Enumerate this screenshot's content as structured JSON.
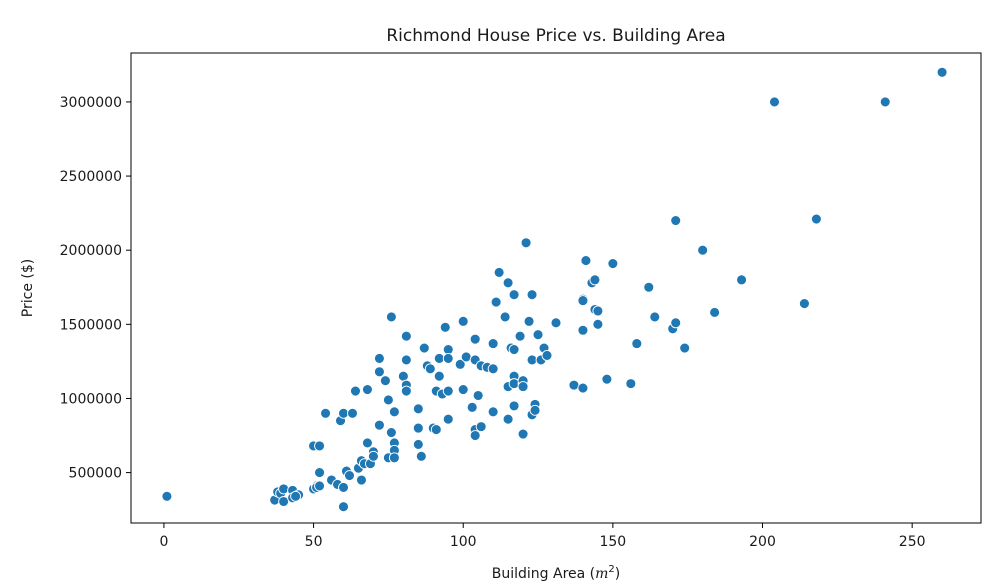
{
  "chart_data": {
    "type": "scatter",
    "title": "Richmond House Price vs. Building Area",
    "xlabel": "Building Area (",
    "xlabel_unit_base": "m",
    "xlabel_unit_exp": "2",
    "xlabel_close": ")",
    "ylabel": "Price ($)",
    "xlim": [
      -11,
      273
    ],
    "ylim": [
      160000,
      3330000
    ],
    "xticks": [
      0,
      50,
      100,
      150,
      200,
      250
    ],
    "yticks": [
      500000,
      1000000,
      1500000,
      2000000,
      2500000,
      3000000
    ],
    "grid": false,
    "marker_color": "#1f77b4",
    "series": [
      {
        "points": [
          [
            1,
            340000
          ],
          [
            37,
            315000
          ],
          [
            38,
            370000
          ],
          [
            39,
            360000
          ],
          [
            40,
            390000
          ],
          [
            40,
            305000
          ],
          [
            43,
            380000
          ],
          [
            43,
            330000
          ],
          [
            45,
            350000
          ],
          [
            44,
            340000
          ],
          [
            50,
            680000
          ],
          [
            50,
            390000
          ],
          [
            51,
            410000
          ],
          [
            51,
            400000
          ],
          [
            52,
            500000
          ],
          [
            52,
            680000
          ],
          [
            52,
            410000
          ],
          [
            54,
            900000
          ],
          [
            56,
            450000
          ],
          [
            58,
            420000
          ],
          [
            59,
            850000
          ],
          [
            60,
            900000
          ],
          [
            60,
            270000
          ],
          [
            60,
            400000
          ],
          [
            61,
            510000
          ],
          [
            62,
            480000
          ],
          [
            63,
            900000
          ],
          [
            64,
            1050000
          ],
          [
            65,
            530000
          ],
          [
            66,
            580000
          ],
          [
            66,
            450000
          ],
          [
            67,
            560000
          ],
          [
            68,
            1060000
          ],
          [
            68,
            700000
          ],
          [
            69,
            560000
          ],
          [
            70,
            640000
          ],
          [
            70,
            610000
          ],
          [
            72,
            1270000
          ],
          [
            72,
            1180000
          ],
          [
            72,
            820000
          ],
          [
            74,
            1120000
          ],
          [
            75,
            600000
          ],
          [
            75,
            990000
          ],
          [
            76,
            1550000
          ],
          [
            76,
            770000
          ],
          [
            77,
            700000
          ],
          [
            77,
            650000
          ],
          [
            77,
            910000
          ],
          [
            77,
            600000
          ],
          [
            80,
            1150000
          ],
          [
            81,
            1420000
          ],
          [
            81,
            1260000
          ],
          [
            81,
            1090000
          ],
          [
            81,
            1050000
          ],
          [
            85,
            930000
          ],
          [
            85,
            800000
          ],
          [
            85,
            690000
          ],
          [
            86,
            610000
          ],
          [
            87,
            1340000
          ],
          [
            88,
            1220000
          ],
          [
            89,
            1200000
          ],
          [
            90,
            800000
          ],
          [
            91,
            1050000
          ],
          [
            91,
            790000
          ],
          [
            92,
            1270000
          ],
          [
            92,
            1150000
          ],
          [
            93,
            1030000
          ],
          [
            94,
            1480000
          ],
          [
            95,
            1330000
          ],
          [
            95,
            1270000
          ],
          [
            95,
            1050000
          ],
          [
            95,
            860000
          ],
          [
            99,
            1230000
          ],
          [
            100,
            1520000
          ],
          [
            100,
            1060000
          ],
          [
            101,
            1280000
          ],
          [
            103,
            940000
          ],
          [
            104,
            1400000
          ],
          [
            104,
            1260000
          ],
          [
            104,
            790000
          ],
          [
            104,
            750000
          ],
          [
            105,
            1020000
          ],
          [
            106,
            1220000
          ],
          [
            106,
            810000
          ],
          [
            108,
            1210000
          ],
          [
            110,
            1370000
          ],
          [
            110,
            1200000
          ],
          [
            110,
            910000
          ],
          [
            111,
            1650000
          ],
          [
            112,
            1850000
          ],
          [
            114,
            1550000
          ],
          [
            115,
            1780000
          ],
          [
            115,
            1080000
          ],
          [
            115,
            860000
          ],
          [
            116,
            1340000
          ],
          [
            117,
            1700000
          ],
          [
            117,
            1330000
          ],
          [
            117,
            1150000
          ],
          [
            117,
            1100000
          ],
          [
            117,
            950000
          ],
          [
            119,
            1420000
          ],
          [
            120,
            1100000
          ],
          [
            120,
            1120000
          ],
          [
            120,
            1080000
          ],
          [
            120,
            760000
          ],
          [
            121,
            2050000
          ],
          [
            122,
            1520000
          ],
          [
            123,
            1700000
          ],
          [
            123,
            1260000
          ],
          [
            123,
            890000
          ],
          [
            124,
            960000
          ],
          [
            124,
            920000
          ],
          [
            125,
            1430000
          ],
          [
            126,
            1260000
          ],
          [
            127,
            1340000
          ],
          [
            128,
            1290000
          ],
          [
            131,
            1510000
          ],
          [
            137,
            1090000
          ],
          [
            140,
            1670000
          ],
          [
            140,
            1660000
          ],
          [
            140,
            1460000
          ],
          [
            140,
            1070000
          ],
          [
            141,
            1930000
          ],
          [
            143,
            1780000
          ],
          [
            144,
            1800000
          ],
          [
            144,
            1600000
          ],
          [
            145,
            1590000
          ],
          [
            145,
            1500000
          ],
          [
            148,
            1130000
          ],
          [
            150,
            1910000
          ],
          [
            156,
            1100000
          ],
          [
            158,
            1370000
          ],
          [
            162,
            1750000
          ],
          [
            164,
            1550000
          ],
          [
            170,
            1470000
          ],
          [
            171,
            2200000
          ],
          [
            171,
            1510000
          ],
          [
            174,
            1340000
          ],
          [
            180,
            2000000
          ],
          [
            184,
            1580000
          ],
          [
            193,
            1800000
          ],
          [
            204,
            3000000
          ],
          [
            214,
            1640000
          ],
          [
            218,
            2210000
          ],
          [
            241,
            3000000
          ],
          [
            260,
            3200000
          ]
        ]
      }
    ]
  }
}
